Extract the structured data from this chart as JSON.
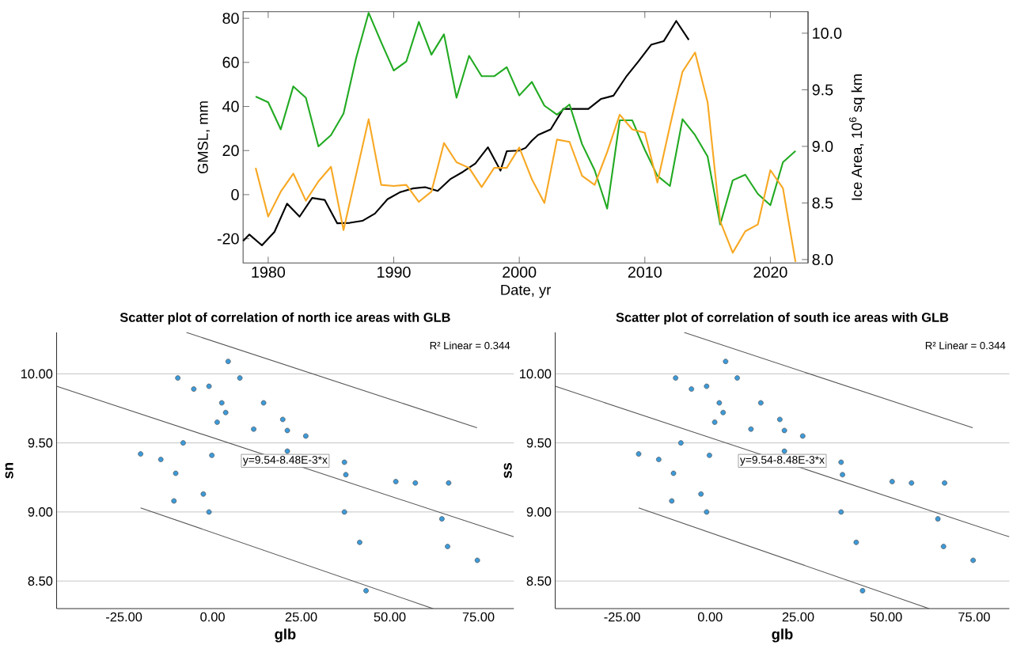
{
  "chart_data": [
    {
      "type": "line",
      "xlabel": "Date, yr",
      "ylabel": "GMSL, mm",
      "y2label": "Ice Area, 10$^{6}$ sq km",
      "line_style": "solid",
      "xlim": [
        1978,
        2023
      ],
      "xticks": [
        1980,
        1990,
        2000,
        2010,
        2020
      ],
      "ylim": [
        -31,
        83
      ],
      "yticks": [
        -20,
        0,
        20,
        40,
        60,
        80
      ],
      "y2lim": [
        7.97,
        10.19
      ],
      "y2ticks": [
        {
          "value": 8,
          "label": "8.0"
        },
        {
          "value": 8.5,
          "label": "8.5"
        },
        {
          "value": 9,
          "label": "9.0"
        },
        {
          "value": 9.5,
          "label": "9.5"
        },
        {
          "value": 10,
          "label": "10.0"
        }
      ],
      "x": [
        1979,
        1980,
        1981,
        1982,
        1983,
        1984,
        1985,
        1986,
        1987,
        1988,
        1989,
        1990,
        1991,
        1992,
        1993,
        1994,
        1995,
        1996,
        1997,
        1998,
        1999,
        2000,
        2001,
        2002,
        2003,
        2004,
        2005,
        2006,
        2007,
        2008,
        2009,
        2010,
        2011,
        2012,
        2013,
        2014,
        2015,
        2016,
        2017,
        2018,
        2019,
        2020,
        2021,
        2022
      ],
      "series": [
        {
          "color": "#000000",
          "axis": "y",
          "marker": "none",
          "x": [
            1978,
            1978.5,
            1979.5,
            1980.5,
            1981.5,
            1982.5,
            1983.5,
            1984.5,
            1985.5,
            1986.5,
            1987.5,
            1988.5,
            1989.5,
            1990.5,
            1991.5,
            1992.5,
            1993.5,
            1994.5,
            1995.5,
            1996.5,
            1997.5,
            1998.5,
            1999,
            2000,
            2000.5,
            2001,
            2001.5,
            2002.5,
            2003.5,
            2004.5,
            2005.5,
            2006.5,
            2007.5,
            2008.5,
            2009.5,
            2010.5,
            2011.5,
            2012.5,
            2013.5
          ],
          "values": [
            -21,
            -18.1,
            -23,
            -16.9,
            -4.1,
            -10,
            -1.5,
            -2.4,
            -13,
            -12.8,
            -11.9,
            -8.6,
            -2.1,
            1.1,
            2.8,
            3.4,
            1.7,
            7,
            10.3,
            14.1,
            21.5,
            10.9,
            19.7,
            20,
            21.2,
            24.5,
            27.1,
            29.6,
            38.9,
            38.9,
            38.9,
            43.4,
            44.9,
            53.4,
            60.5,
            68,
            69.6,
            78.8,
            70.2
          ]
        },
        {
          "color": "#22aa22",
          "axis": "y2",
          "marker": "none",
          "values": [
            9.44,
            9.39,
            9.15,
            9.53,
            9.43,
            9.0,
            9.1,
            9.29,
            9.78,
            10.18,
            9.92,
            9.67,
            9.75,
            10.1,
            9.81,
            9.99,
            9.43,
            9.8,
            9.62,
            9.62,
            9.7,
            9.45,
            9.57,
            9.36,
            9.28,
            9.37,
            9.02,
            8.79,
            8.45,
            9.23,
            9.23,
            8.97,
            8.74,
            8.65,
            9.24,
            9.1,
            8.91,
            8.31,
            8.7,
            8.75,
            8.58,
            8.48,
            8.86,
            8.96
          ]
        },
        {
          "color": "#f7a823",
          "axis": "y2",
          "marker": "none",
          "values": [
            8.81,
            8.38,
            8.6,
            8.76,
            8.52,
            8.69,
            8.82,
            8.26,
            8.75,
            9.24,
            8.66,
            8.65,
            8.66,
            8.51,
            8.6,
            9.03,
            8.86,
            8.81,
            8.64,
            8.81,
            8.81,
            8.99,
            8.71,
            8.5,
            9.06,
            9.04,
            8.74,
            8.66,
            8.95,
            9.28,
            9.15,
            9.12,
            8.68,
            9.18,
            9.66,
            9.83,
            9.39,
            8.34,
            8.06,
            8.25,
            8.31,
            8.79,
            8.63,
            7.98
          ]
        }
      ]
    },
    {
      "type": "scatter",
      "title": "Scatter plot of correlation of north ice areas with GLB",
      "xlabel": "glb",
      "ylabel": "sn",
      "grid": "y",
      "line_style": "solid",
      "xlim": [
        -44,
        85
      ],
      "xticks": [
        {
          "value": -25,
          "label": "-25.00"
        },
        {
          "value": 0,
          "label": "0.00"
        },
        {
          "value": 25,
          "label": "25.00"
        },
        {
          "value": 50,
          "label": "50.00"
        },
        {
          "value": 75,
          "label": "75.00"
        }
      ],
      "ylim": [
        8.3,
        10.3
      ],
      "yticks": [
        {
          "value": 8.5,
          "label": "8.50"
        },
        {
          "value": 9,
          "label": "9.00"
        },
        {
          "value": 9.5,
          "label": "9.50"
        },
        {
          "value": 10,
          "label": "10.00"
        }
      ],
      "annotations": [
        "R² Linear = 0.344",
        {
          "text": "y=9.54-8.48E-3*x",
          "x": 20.5,
          "y": 9.37
        }
      ],
      "series": [
        {
          "type": "scatter",
          "color": "#3d9ad8",
          "marker": "circle",
          "x": [
            -20.3,
            -14.6,
            -10.4,
            -10.9,
            -9.8,
            -8.3,
            -5.3,
            -2.6,
            -1.0,
            -1.0,
            -0.2,
            1.3,
            2.6,
            3.7,
            4.4,
            7.7,
            11.6,
            14.4,
            19.8,
            21.1,
            21.1,
            26.3,
            37.2,
            37.6,
            37.2,
            41.5,
            43.3,
            51.7,
            57.2,
            66.6,
            64.7,
            66.3,
            74.7
          ],
          "values": [
            9.42,
            9.38,
            9.28,
            9.08,
            9.97,
            9.5,
            9.89,
            9.13,
            9.91,
            9.0,
            9.41,
            9.65,
            9.79,
            9.72,
            10.09,
            9.97,
            9.6,
            9.79,
            9.67,
            9.59,
            9.44,
            9.55,
            9.36,
            9.27,
            9.0,
            8.78,
            8.43,
            9.22,
            9.21,
            9.21,
            8.95,
            8.75,
            8.65
          ]
        },
        {
          "type": "line",
          "color": "#555555",
          "marker": "none",
          "x": [
            -44,
            85
          ],
          "values": [
            9.91,
            8.82
          ]
        },
        {
          "type": "line",
          "color": "#555555",
          "marker": "none",
          "x": [
            -7.4,
            74.6
          ],
          "values": [
            10.3,
            9.61
          ]
        },
        {
          "type": "line",
          "color": "#555555",
          "marker": "none",
          "x": [
            -20.3,
            62.2
          ],
          "values": [
            9.03,
            8.3
          ]
        }
      ]
    },
    {
      "type": "scatter",
      "title": "Scatter plot of correlation of south ice areas with GLB",
      "xlabel": "glb",
      "ylabel": "ss",
      "grid": "y",
      "line_style": "solid",
      "xlim": [
        -44,
        85
      ],
      "xticks": [
        {
          "value": -25,
          "label": "-25.00"
        },
        {
          "value": 0,
          "label": "0.00"
        },
        {
          "value": 25,
          "label": "25.00"
        },
        {
          "value": 50,
          "label": "50.00"
        },
        {
          "value": 75,
          "label": "75.00"
        }
      ],
      "ylim": [
        8.3,
        10.3
      ],
      "yticks": [
        {
          "value": 8.5,
          "label": "8.50"
        },
        {
          "value": 9,
          "label": "9.00"
        },
        {
          "value": 9.5,
          "label": "9.50"
        },
        {
          "value": 10,
          "label": "10.00"
        }
      ],
      "annotations": [
        "R² Linear = 0.344",
        {
          "text": "y=9.54-8.48E-3*x",
          "x": 20.5,
          "y": 9.37
        }
      ],
      "series": [
        {
          "type": "scatter",
          "color": "#3d9ad8",
          "marker": "circle",
          "x": [
            -20.3,
            -14.6,
            -10.4,
            -10.9,
            -9.8,
            -8.3,
            -5.3,
            -2.6,
            -1.0,
            -1.0,
            -0.2,
            1.3,
            2.6,
            3.7,
            4.4,
            7.7,
            11.6,
            14.4,
            19.8,
            21.1,
            21.1,
            26.3,
            37.2,
            37.6,
            37.2,
            41.5,
            43.3,
            51.7,
            57.2,
            66.6,
            64.7,
            66.3,
            74.7
          ],
          "values": [
            9.42,
            9.38,
            9.28,
            9.08,
            9.97,
            9.5,
            9.89,
            9.13,
            9.91,
            9.0,
            9.41,
            9.65,
            9.79,
            9.72,
            10.09,
            9.97,
            9.6,
            9.79,
            9.67,
            9.59,
            9.44,
            9.55,
            9.36,
            9.27,
            9.0,
            8.78,
            8.43,
            9.22,
            9.21,
            9.21,
            8.95,
            8.75,
            8.65
          ]
        },
        {
          "type": "line",
          "color": "#555555",
          "marker": "none",
          "x": [
            -44,
            85
          ],
          "values": [
            9.91,
            8.82
          ]
        },
        {
          "type": "line",
          "color": "#555555",
          "marker": "none",
          "x": [
            -7.4,
            74.6
          ],
          "values": [
            10.3,
            9.61
          ]
        },
        {
          "type": "line",
          "color": "#555555",
          "marker": "none",
          "x": [
            -20.3,
            62.2
          ],
          "values": [
            9.03,
            8.3
          ]
        }
      ]
    }
  ]
}
